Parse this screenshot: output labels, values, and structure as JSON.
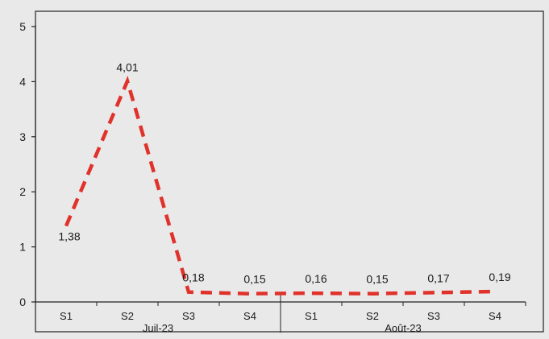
{
  "chart_data": {
    "type": "line",
    "title": "",
    "xlabel": "",
    "ylabel": "",
    "ylim": [
      0,
      5
    ],
    "y_ticks": [
      "0",
      "1",
      "2",
      "3",
      "4",
      "5"
    ],
    "categories": [
      "S1",
      "S2",
      "S3",
      "S4",
      "S1",
      "S2",
      "S3",
      "S4"
    ],
    "groups": [
      {
        "label": "Juil-23",
        "span": [
          0,
          3
        ]
      },
      {
        "label": "Août-23",
        "span": [
          4,
          7
        ]
      }
    ],
    "series": [
      {
        "values": [
          1.38,
          4.01,
          0.18,
          0.15,
          0.16,
          0.15,
          0.17,
          0.19
        ],
        "labels": [
          "1,38",
          "4,01",
          "0,18",
          "0,15",
          "0,16",
          "0,15",
          "0,17",
          "0,19"
        ],
        "color": "#e0322b",
        "style": "dashed"
      }
    ],
    "grid": false,
    "legend": "none"
  }
}
